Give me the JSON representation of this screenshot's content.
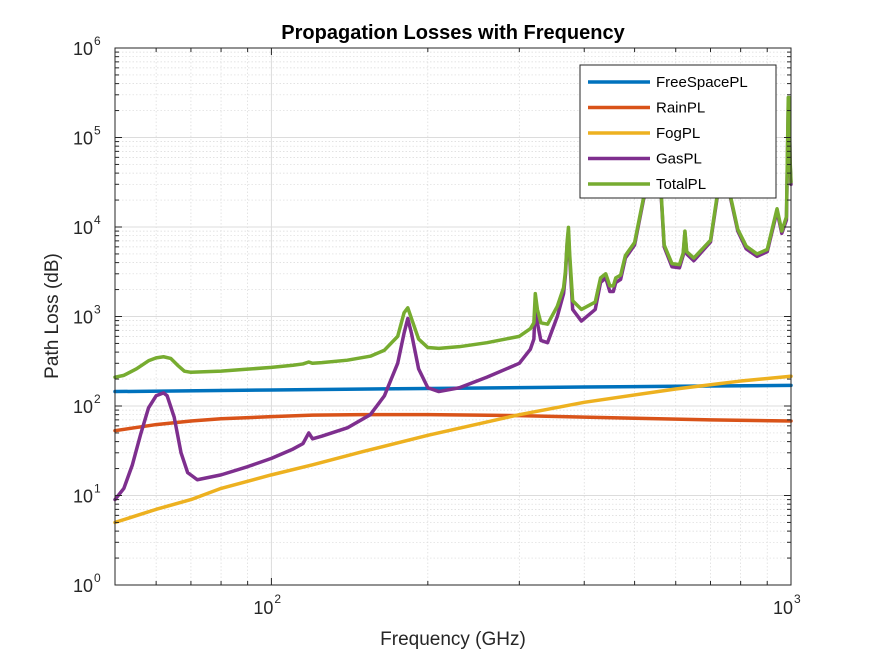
{
  "chart_data": {
    "type": "line",
    "title": "Propagation Losses with Frequency",
    "xlabel": "Frequency (GHz)",
    "ylabel": "Path Loss (dB)",
    "xscale": "log",
    "yscale": "log",
    "xlim": [
      50,
      1000
    ],
    "ylim": [
      1,
      1000000
    ],
    "grid": true,
    "minor_grid": true,
    "legend_position": "top-right",
    "x_ticks": [
      {
        "base": "10",
        "exp": "2",
        "value": 100
      },
      {
        "base": "10",
        "exp": "3",
        "value": 1000
      }
    ],
    "y_ticks": [
      {
        "base": "10",
        "exp": "0",
        "value": 1
      },
      {
        "base": "10",
        "exp": "1",
        "value": 10
      },
      {
        "base": "10",
        "exp": "2",
        "value": 100
      },
      {
        "base": "10",
        "exp": "3",
        "value": 1000
      },
      {
        "base": "10",
        "exp": "4",
        "value": 10000
      },
      {
        "base": "10",
        "exp": "5",
        "value": 100000
      },
      {
        "base": "10",
        "exp": "6",
        "value": 1000000
      }
    ],
    "series": [
      {
        "name": "FreeSpacePL",
        "color": "#0072BD",
        "points": [
          [
            50,
            145
          ],
          [
            100,
            151
          ],
          [
            200,
            157
          ],
          [
            400,
            163
          ],
          [
            600,
            166
          ],
          [
            1000,
            170
          ]
        ]
      },
      {
        "name": "RainPL",
        "color": "#D95319",
        "points": [
          [
            50,
            53
          ],
          [
            60,
            62
          ],
          [
            70,
            68
          ],
          [
            80,
            72
          ],
          [
            100,
            76
          ],
          [
            120,
            79
          ],
          [
            150,
            80
          ],
          [
            200,
            80
          ],
          [
            250,
            79
          ],
          [
            300,
            78
          ],
          [
            400,
            75
          ],
          [
            500,
            73
          ],
          [
            700,
            70
          ],
          [
            1000,
            68
          ]
        ]
      },
      {
        "name": "FogPL",
        "color": "#EDB120",
        "points": [
          [
            50,
            5
          ],
          [
            60,
            7
          ],
          [
            70,
            9
          ],
          [
            80,
            12
          ],
          [
            100,
            17
          ],
          [
            120,
            22
          ],
          [
            150,
            31
          ],
          [
            200,
            47
          ],
          [
            300,
            80
          ],
          [
            400,
            110
          ],
          [
            600,
            155
          ],
          [
            800,
            190
          ],
          [
            1000,
            215
          ]
        ]
      },
      {
        "name": "GasPL",
        "color": "#7E2F8E",
        "points": [
          [
            50,
            9
          ],
          [
            52,
            12
          ],
          [
            54,
            22
          ],
          [
            56,
            48
          ],
          [
            58,
            95
          ],
          [
            60,
            130
          ],
          [
            62,
            140
          ],
          [
            63,
            130
          ],
          [
            65,
            75
          ],
          [
            67,
            30
          ],
          [
            69,
            18
          ],
          [
            72,
            15
          ],
          [
            80,
            17
          ],
          [
            90,
            21
          ],
          [
            100,
            26
          ],
          [
            110,
            33
          ],
          [
            115,
            38
          ],
          [
            118,
            50
          ],
          [
            120,
            43
          ],
          [
            125,
            46
          ],
          [
            140,
            57
          ],
          [
            155,
            80
          ],
          [
            165,
            130
          ],
          [
            175,
            300
          ],
          [
            180,
            650
          ],
          [
            183,
            950
          ],
          [
            186,
            650
          ],
          [
            192,
            260
          ],
          [
            200,
            160
          ],
          [
            210,
            145
          ],
          [
            230,
            160
          ],
          [
            260,
            210
          ],
          [
            300,
            300
          ],
          [
            315,
            430
          ],
          [
            320,
            560
          ],
          [
            322,
            1350
          ],
          [
            325,
            850
          ],
          [
            330,
            540
          ],
          [
            340,
            510
          ],
          [
            355,
            1000
          ],
          [
            365,
            1800
          ],
          [
            368,
            2900
          ],
          [
            371,
            6800
          ],
          [
            373,
            8200
          ],
          [
            375,
            4500
          ],
          [
            380,
            1200
          ],
          [
            395,
            890
          ],
          [
            420,
            1200
          ],
          [
            430,
            2400
          ],
          [
            440,
            2700
          ],
          [
            448,
            1900
          ],
          [
            455,
            1900
          ],
          [
            460,
            2400
          ],
          [
            470,
            2600
          ],
          [
            480,
            4500
          ],
          [
            500,
            6300
          ],
          [
            520,
            20000
          ],
          [
            545,
            55000
          ],
          [
            560,
            35000
          ],
          [
            570,
            6000
          ],
          [
            590,
            3600
          ],
          [
            610,
            3500
          ],
          [
            620,
            4800
          ],
          [
            625,
            8600
          ],
          [
            630,
            5000
          ],
          [
            650,
            4200
          ],
          [
            700,
            6800
          ],
          [
            745,
            75000
          ],
          [
            760,
            25000
          ],
          [
            790,
            9000
          ],
          [
            820,
            5700
          ],
          [
            860,
            4700
          ],
          [
            900,
            5300
          ],
          [
            940,
            15000
          ],
          [
            960,
            8500
          ],
          [
            980,
            12000
          ],
          [
            988,
            230000
          ],
          [
            992,
            230000
          ],
          [
            996,
            50000
          ],
          [
            1000,
            30000
          ]
        ]
      },
      {
        "name": "TotalPL",
        "color": "#77AC30",
        "points": [
          [
            50,
            210
          ],
          [
            52,
            220
          ],
          [
            55,
            260
          ],
          [
            58,
            320
          ],
          [
            60,
            345
          ],
          [
            62,
            355
          ],
          [
            64,
            340
          ],
          [
            66,
            285
          ],
          [
            68,
            245
          ],
          [
            70,
            238
          ],
          [
            80,
            245
          ],
          [
            90,
            258
          ],
          [
            100,
            270
          ],
          [
            110,
            285
          ],
          [
            115,
            295
          ],
          [
            118,
            310
          ],
          [
            120,
            300
          ],
          [
            125,
            305
          ],
          [
            140,
            325
          ],
          [
            155,
            360
          ],
          [
            165,
            420
          ],
          [
            175,
            600
          ],
          [
            180,
            1100
          ],
          [
            183,
            1250
          ],
          [
            186,
            950
          ],
          [
            192,
            560
          ],
          [
            200,
            450
          ],
          [
            210,
            440
          ],
          [
            230,
            460
          ],
          [
            260,
            510
          ],
          [
            300,
            600
          ],
          [
            315,
            730
          ],
          [
            320,
            850
          ],
          [
            322,
            1800
          ],
          [
            325,
            1200
          ],
          [
            330,
            850
          ],
          [
            340,
            820
          ],
          [
            355,
            1300
          ],
          [
            365,
            2100
          ],
          [
            368,
            3200
          ],
          [
            371,
            7100
          ],
          [
            373,
            9900
          ],
          [
            375,
            5000
          ],
          [
            380,
            1500
          ],
          [
            395,
            1200
          ],
          [
            420,
            1450
          ],
          [
            430,
            2700
          ],
          [
            440,
            3000
          ],
          [
            448,
            2200
          ],
          [
            455,
            2200
          ],
          [
            460,
            2700
          ],
          [
            470,
            2900
          ],
          [
            480,
            4800
          ],
          [
            500,
            6700
          ],
          [
            520,
            21000
          ],
          [
            545,
            58000
          ],
          [
            560,
            37000
          ],
          [
            570,
            6300
          ],
          [
            590,
            3900
          ],
          [
            610,
            3800
          ],
          [
            620,
            5100
          ],
          [
            625,
            9000
          ],
          [
            630,
            5300
          ],
          [
            650,
            4500
          ],
          [
            700,
            7100
          ],
          [
            745,
            80000
          ],
          [
            760,
            26000
          ],
          [
            790,
            9400
          ],
          [
            820,
            6100
          ],
          [
            860,
            5000
          ],
          [
            900,
            5600
          ],
          [
            940,
            16000
          ],
          [
            960,
            9000
          ],
          [
            980,
            13000
          ],
          [
            988,
            280000
          ],
          [
            992,
            280000
          ],
          [
            996,
            55000
          ],
          [
            1000,
            32000
          ]
        ]
      }
    ]
  }
}
